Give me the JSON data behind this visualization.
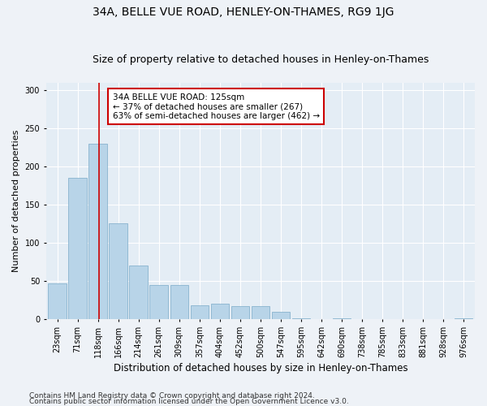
{
  "title": "34A, BELLE VUE ROAD, HENLEY-ON-THAMES, RG9 1JG",
  "subtitle": "Size of property relative to detached houses in Henley-on-Thames",
  "xlabel": "Distribution of detached houses by size in Henley-on-Thames",
  "ylabel": "Number of detached properties",
  "categories": [
    "23sqm",
    "71sqm",
    "118sqm",
    "166sqm",
    "214sqm",
    "261sqm",
    "309sqm",
    "357sqm",
    "404sqm",
    "452sqm",
    "500sqm",
    "547sqm",
    "595sqm",
    "642sqm",
    "690sqm",
    "738sqm",
    "785sqm",
    "833sqm",
    "881sqm",
    "928sqm",
    "976sqm"
  ],
  "values": [
    47,
    185,
    230,
    125,
    70,
    45,
    45,
    18,
    20,
    17,
    17,
    10,
    1,
    0,
    1,
    0,
    0,
    0,
    0,
    0,
    1
  ],
  "bar_color": "#b8d4e8",
  "bar_edge_color": "#7aaac8",
  "vline_x": 2.07,
  "vline_color": "#cc0000",
  "annotation_line1": "34A BELLE VUE ROAD: 125sqm",
  "annotation_line2": "← 37% of detached houses are smaller (267)",
  "annotation_line3": "63% of semi-detached houses are larger (462) →",
  "annotation_box_color": "#ffffff",
  "annotation_box_edge": "#cc0000",
  "ylim": [
    0,
    310
  ],
  "yticks": [
    0,
    50,
    100,
    150,
    200,
    250,
    300
  ],
  "footer_line1": "Contains HM Land Registry data © Crown copyright and database right 2024.",
  "footer_line2": "Contains public sector information licensed under the Open Government Licence v3.0.",
  "background_color": "#eef2f7",
  "plot_background": "#e4edf5",
  "grid_color": "#ffffff",
  "title_fontsize": 10,
  "subtitle_fontsize": 9,
  "xlabel_fontsize": 8.5,
  "ylabel_fontsize": 8,
  "tick_fontsize": 7,
  "annotation_fontsize": 7.5,
  "footer_fontsize": 6.5
}
